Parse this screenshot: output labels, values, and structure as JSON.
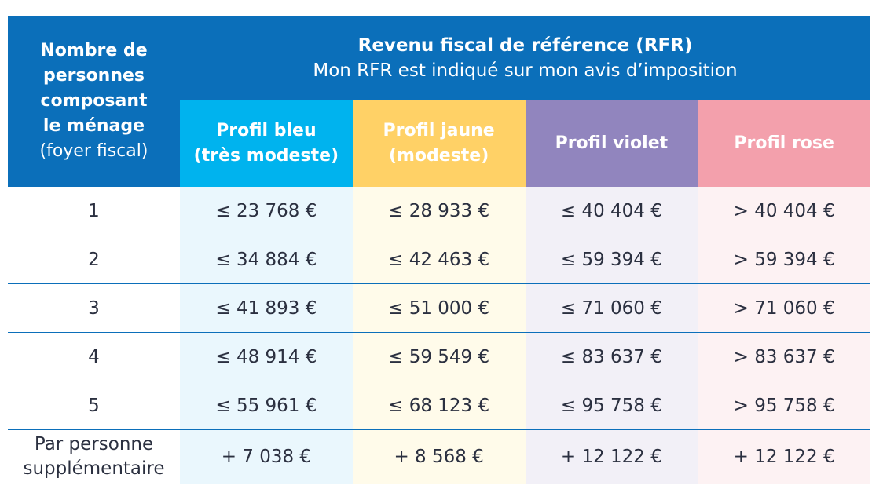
{
  "header": {
    "household_label_bold": [
      "Nombre de",
      "personnes",
      "composant",
      "le ménage"
    ],
    "household_label_sub": "(foyer fiscal)",
    "rfr_title": "Revenu fiscal de référence (RFR)",
    "rfr_subtitle": "Mon RFR est indiqué sur mon avis d’imposition",
    "profiles": [
      {
        "line1": "Profil bleu",
        "line2": "(très modeste)",
        "color": "#00b3ee"
      },
      {
        "line1": "Profil jaune",
        "line2": "(modeste)",
        "color": "#ffd166"
      },
      {
        "line1": "Profil violet",
        "line2": "",
        "color": "#9185be"
      },
      {
        "line1": "Profil rose",
        "line2": "",
        "color": "#f3a0ac"
      }
    ]
  },
  "rows": [
    {
      "label": [
        "1"
      ],
      "values": [
        "≤ 23 768 €",
        "≤ 28 933 €",
        "≤ 40 404 €",
        "> 40 404 €"
      ]
    },
    {
      "label": [
        "2"
      ],
      "values": [
        "≤ 34 884 €",
        "≤ 42 463 €",
        "≤ 59 394 €",
        "> 59 394 €"
      ]
    },
    {
      "label": [
        "3"
      ],
      "values": [
        "≤ 41 893 €",
        "≤ 51 000 €",
        "≤ 71 060 €",
        "> 71 060 €"
      ]
    },
    {
      "label": [
        "4"
      ],
      "values": [
        "≤ 48 914 €",
        "≤ 59 549 €",
        "≤ 83 637 €",
        "> 83 637 €"
      ]
    },
    {
      "label": [
        "5"
      ],
      "values": [
        "≤ 55 961 €",
        "≤ 68 123 €",
        "≤ 95 758 €",
        "> 95 758 €"
      ]
    },
    {
      "label": [
        "Par personne",
        "supplémentaire"
      ],
      "values": [
        "+ 7 038 €",
        "+ 8 568 €",
        "+ 12 122 €",
        "+ 12 122 €"
      ]
    }
  ],
  "colors": {
    "header_blue": "#0b6fba"
  }
}
